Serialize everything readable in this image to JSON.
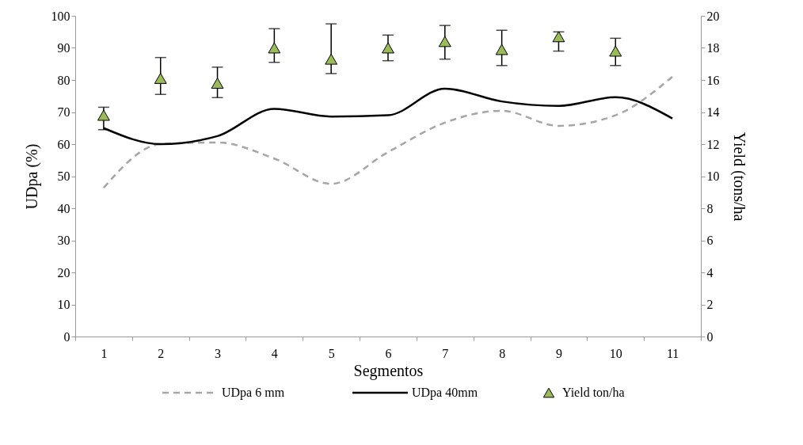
{
  "chart_data": {
    "type": "line",
    "categories": [
      "1",
      "2",
      "3",
      "4",
      "5",
      "6",
      "7",
      "8",
      "9",
      "10",
      "11"
    ],
    "xlabel": "Segmentos",
    "ylabel": "UDpa (%)",
    "y2label": "Yield  (tons/ha",
    "ylim": [
      0,
      100
    ],
    "yticks": [
      0,
      10,
      20,
      30,
      40,
      50,
      60,
      70,
      80,
      90,
      100
    ],
    "y2lim": [
      0,
      20
    ],
    "y2ticks": [
      0,
      2,
      4,
      6,
      8,
      10,
      12,
      14,
      16,
      18,
      20
    ],
    "legend": "bottom",
    "grid": false,
    "series": [
      {
        "name": "UDpa 6 mm",
        "color": "#a6a6a6",
        "line_style": "dashed",
        "values": [
          46.4,
          60,
          60.5,
          55.5,
          47.6,
          57.5,
          66.7,
          70.4,
          65.7,
          69,
          81
        ]
      },
      {
        "name": "UDpa 40mm",
        "color": "#000000",
        "line_style": "solid",
        "values": [
          65,
          60,
          62.5,
          71,
          68.6,
          69,
          77.3,
          73.3,
          71.9,
          74.6,
          68
        ]
      },
      {
        "name": "Yield ton/ha",
        "type": "scatter",
        "axis": "y2",
        "marker": "triangle",
        "color": "#9bbb59",
        "values": [
          13.8,
          16.1,
          15.8,
          18.0,
          17.3,
          18.0,
          18.4,
          17.9,
          18.7,
          17.8,
          null
        ],
        "errors": [
          [
            12.9,
            14.3
          ],
          [
            15.1,
            17.4
          ],
          [
            14.9,
            16.8
          ],
          [
            17.1,
            19.2
          ],
          [
            16.4,
            19.5
          ],
          [
            17.2,
            18.8
          ],
          [
            17.3,
            19.4
          ],
          [
            16.9,
            19.1
          ],
          [
            17.8,
            19.0
          ],
          [
            16.9,
            18.6
          ],
          null
        ]
      }
    ]
  }
}
